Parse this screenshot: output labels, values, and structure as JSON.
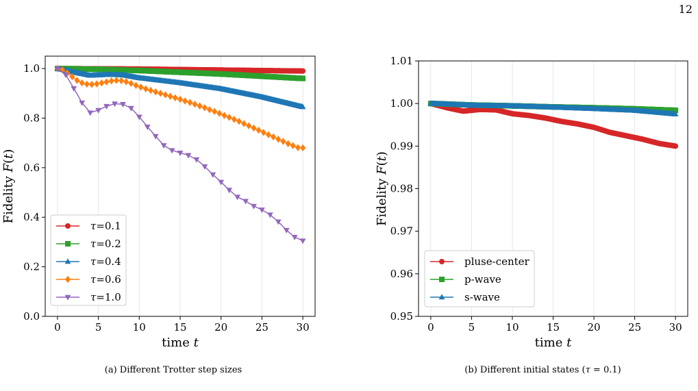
{
  "page": {
    "number": "12"
  },
  "colors": {
    "red": "#d62728",
    "green": "#2ca02c",
    "blue": "#1f77b4",
    "orange": "#ff7f0e",
    "purple": "#9467bd"
  },
  "chart_data": [
    {
      "id": "a",
      "type": "line",
      "caption": "(a) Different Trotter step sizes",
      "xlabel": "time t",
      "ylabel": "Fidelity F(t)",
      "xlim": [
        -1.5,
        31.5
      ],
      "ylim": [
        0.0,
        1.05
      ],
      "xticks": [
        0,
        5,
        10,
        15,
        20,
        25,
        30
      ],
      "yticks": [
        0.0,
        0.2,
        0.4,
        0.6,
        0.8,
        1.0
      ],
      "ytick_labels": [
        "0.0",
        "0.2",
        "0.4",
        "0.6",
        "0.8",
        "1.0"
      ],
      "grid": "vertical",
      "legend_position": "lower-left",
      "series": [
        {
          "name": "τ=0.1",
          "color": "#d62728",
          "marker": "circle",
          "dense": true,
          "x": [
            0,
            5,
            10,
            15,
            20,
            25,
            30
          ],
          "y": [
            1.0,
            0.999,
            0.998,
            0.996,
            0.994,
            0.992,
            0.99
          ]
        },
        {
          "name": "τ=0.2",
          "color": "#2ca02c",
          "marker": "square",
          "dense": true,
          "x": [
            0,
            5,
            10,
            15,
            20,
            25,
            30
          ],
          "y": [
            1.0,
            0.997,
            0.992,
            0.985,
            0.978,
            0.969,
            0.96
          ]
        },
        {
          "name": "τ=0.4",
          "color": "#1f77b4",
          "marker": "triangle-up",
          "dense": true,
          "x": [
            0,
            2,
            4,
            6,
            8,
            10,
            15,
            20,
            25,
            30
          ],
          "y": [
            1.0,
            0.985,
            0.972,
            0.975,
            0.974,
            0.962,
            0.942,
            0.918,
            0.885,
            0.845
          ]
        },
        {
          "name": "τ=0.6",
          "color": "#ff7f0e",
          "marker": "diamond",
          "dense": false,
          "x": [
            0,
            0.6,
            1.2,
            1.8,
            2.4,
            3.0,
            3.6,
            4.2,
            4.8,
            5.4,
            6.0,
            6.6,
            7.2,
            7.8,
            8.4,
            9.0,
            9.6,
            10.2,
            10.8,
            11.4,
            12.0,
            12.6,
            13.2,
            13.8,
            14.4,
            15.0,
            15.6,
            16.2,
            16.8,
            17.4,
            18.0,
            18.6,
            19.2,
            19.8,
            20.4,
            21.0,
            21.6,
            22.2,
            22.8,
            23.4,
            24.0,
            24.6,
            25.2,
            25.8,
            26.4,
            27.0,
            27.6,
            28.2,
            28.8,
            29.4,
            30.0
          ],
          "y": [
            1.0,
            0.995,
            0.982,
            0.967,
            0.952,
            0.942,
            0.937,
            0.936,
            0.938,
            0.942,
            0.946,
            0.95,
            0.952,
            0.951,
            0.947,
            0.94,
            0.932,
            0.925,
            0.918,
            0.912,
            0.906,
            0.9,
            0.894,
            0.888,
            0.882,
            0.876,
            0.869,
            0.863,
            0.856,
            0.849,
            0.842,
            0.834,
            0.827,
            0.819,
            0.811,
            0.803,
            0.795,
            0.787,
            0.778,
            0.769,
            0.76,
            0.751,
            0.742,
            0.733,
            0.724,
            0.715,
            0.706,
            0.697,
            0.689,
            0.681,
            0.68
          ]
        },
        {
          "name": "τ=1.0",
          "color": "#9467bd",
          "marker": "triangle-down",
          "dense": false,
          "x": [
            0,
            1,
            2,
            3,
            4,
            5,
            6,
            7,
            8,
            9,
            10,
            11,
            12,
            13,
            14,
            15,
            16,
            17,
            18,
            19,
            20,
            21,
            22,
            23,
            24,
            25,
            26,
            27,
            28,
            29,
            30
          ],
          "y": [
            1.0,
            0.975,
            0.92,
            0.862,
            0.822,
            0.832,
            0.848,
            0.858,
            0.856,
            0.84,
            0.805,
            0.765,
            0.727,
            0.69,
            0.67,
            0.66,
            0.65,
            0.633,
            0.605,
            0.572,
            0.542,
            0.51,
            0.482,
            0.465,
            0.445,
            0.43,
            0.41,
            0.382,
            0.348,
            0.32,
            0.305
          ]
        }
      ]
    },
    {
      "id": "b",
      "type": "line",
      "caption": "(b) Different initial states (τ = 0.1)",
      "xlabel": "time t",
      "ylabel": "Fidelity F(t)",
      "xlim": [
        -1.5,
        31.5
      ],
      "ylim": [
        0.95,
        1.01
      ],
      "xticks": [
        0,
        5,
        10,
        15,
        20,
        25,
        30
      ],
      "yticks": [
        0.95,
        0.96,
        0.97,
        0.98,
        0.99,
        1.0,
        1.01
      ],
      "ytick_labels": [
        "0.95",
        "0.96",
        "0.97",
        "0.98",
        "0.99",
        "1.00",
        "1.01"
      ],
      "grid": "vertical",
      "legend_position": "lower-left",
      "series": [
        {
          "name": "pluse-center",
          "color": "#d62728",
          "marker": "circle",
          "dense": true,
          "x": [
            0,
            2,
            4,
            6,
            8,
            10,
            12,
            14,
            16,
            18,
            20,
            22,
            24,
            26,
            28,
            30
          ],
          "y": [
            1.0,
            0.999,
            0.9982,
            0.9986,
            0.9985,
            0.9976,
            0.9972,
            0.9966,
            0.9958,
            0.9952,
            0.9944,
            0.9932,
            0.9924,
            0.9916,
            0.9906,
            0.99
          ]
        },
        {
          "name": "p-wave",
          "color": "#2ca02c",
          "marker": "square",
          "dense": true,
          "x": [
            0,
            5,
            10,
            15,
            20,
            25,
            30
          ],
          "y": [
            1.0,
            0.99965,
            0.99945,
            0.9992,
            0.999,
            0.99875,
            0.9984
          ]
        },
        {
          "name": "s-wave",
          "color": "#1f77b4",
          "marker": "triangle-up",
          "dense": true,
          "x": [
            0,
            5,
            10,
            15,
            20,
            25,
            30
          ],
          "y": [
            1.0,
            0.99955,
            0.9994,
            0.9991,
            0.99875,
            0.99835,
            0.9975
          ]
        }
      ]
    }
  ]
}
